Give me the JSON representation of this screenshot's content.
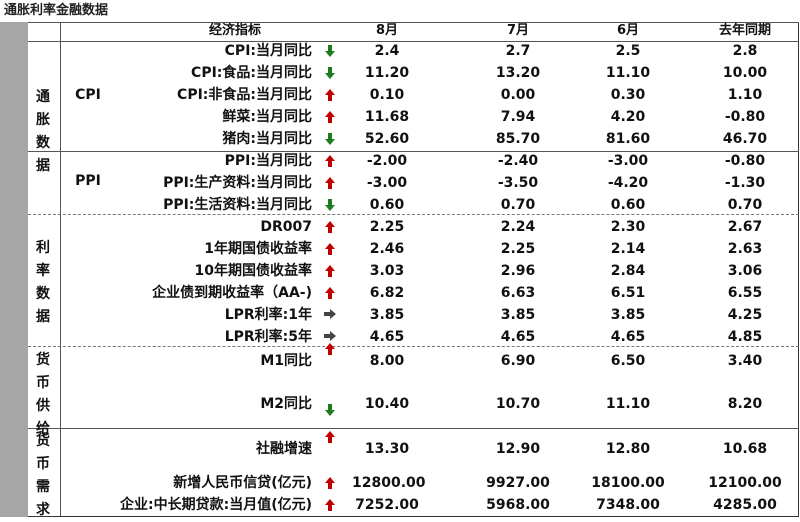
{
  "title": "通胀利率金融数据",
  "header": {
    "indicator": "经济指标",
    "col1": "8月",
    "col2": "7月",
    "col3": "6月",
    "col4": "去年同期"
  },
  "groups": {
    "inflation": "通胀数据",
    "rates": "利率数据",
    "money_supply": "货币供给",
    "money_demand": "货币需求"
  },
  "subgroups": {
    "cpi": "CPI",
    "ppi": "PPI"
  },
  "colors": {
    "up": "#c00000",
    "down": "#1e7b1e",
    "flat": "#444444",
    "sidebar": "#a6a6a6"
  },
  "rows": [
    {
      "label": "CPI:当月同比",
      "dir": "down",
      "v": [
        "2.4",
        "2.7",
        "2.5",
        "2.8"
      ]
    },
    {
      "label": "CPI:食品:当月同比",
      "dir": "down",
      "v": [
        "11.20",
        "13.20",
        "11.10",
        "10.00"
      ]
    },
    {
      "label": "CPI:非食品:当月同比",
      "dir": "up",
      "v": [
        "0.10",
        "0.00",
        "0.30",
        "1.10"
      ]
    },
    {
      "label": "鲜菜:当月同比",
      "dir": "up",
      "v": [
        "11.68",
        "7.94",
        "4.20",
        "-0.80"
      ]
    },
    {
      "label": "猪肉:当月同比",
      "dir": "down",
      "v": [
        "52.60",
        "85.70",
        "81.60",
        "46.70"
      ]
    },
    {
      "label": "PPI:当月同比",
      "dir": "up",
      "v": [
        "-2.00",
        "-2.40",
        "-3.00",
        "-0.80"
      ]
    },
    {
      "label": "PPI:生产资料:当月同比",
      "dir": "up",
      "v": [
        "-3.00",
        "-3.50",
        "-4.20",
        "-1.30"
      ]
    },
    {
      "label": "PPI:生活资料:当月同比",
      "dir": "down",
      "v": [
        "0.60",
        "0.70",
        "0.60",
        "0.70"
      ]
    },
    {
      "label": "DR007",
      "dir": "up",
      "v": [
        "2.25",
        "2.24",
        "2.30",
        "2.67"
      ]
    },
    {
      "label": "1年期国债收益率",
      "dir": "up",
      "v": [
        "2.46",
        "2.25",
        "2.14",
        "2.63"
      ]
    },
    {
      "label": "10年期国债收益率",
      "dir": "up",
      "v": [
        "3.03",
        "2.96",
        "2.84",
        "3.06"
      ]
    },
    {
      "label": "企业债到期收益率（AA-)",
      "dir": "up",
      "v": [
        "6.82",
        "6.63",
        "6.51",
        "6.55"
      ]
    },
    {
      "label": "LPR利率:1年",
      "dir": "flat",
      "v": [
        "3.85",
        "3.85",
        "3.85",
        "4.25"
      ]
    },
    {
      "label": "LPR利率:5年",
      "dir": "flat",
      "v": [
        "4.65",
        "4.65",
        "4.65",
        "4.85"
      ]
    },
    {
      "label": "M1同比",
      "dir": "up",
      "v": [
        "8.00",
        "6.90",
        "6.50",
        "3.40"
      ]
    },
    {
      "label": "M2同比",
      "dir": "down",
      "v": [
        "10.40",
        "10.70",
        "11.10",
        "8.20"
      ]
    },
    {
      "label": "社融增速",
      "dir": "up",
      "v": [
        "13.30",
        "12.90",
        "12.80",
        "10.68"
      ]
    },
    {
      "label": "新增人民币信贷(亿元)",
      "dir": "up",
      "v": [
        "12800.00",
        "9927.00",
        "18100.00",
        "12100.00"
      ]
    },
    {
      "label": "企业:中长期贷款:当月值(亿元)",
      "dir": "up",
      "v": [
        "7252.00",
        "5968.00",
        "7348.00",
        "4285.00"
      ]
    }
  ]
}
